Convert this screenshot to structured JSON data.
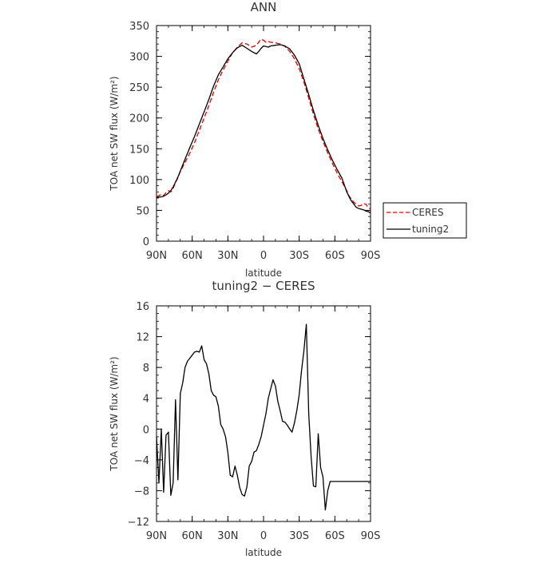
{
  "chart_data": [
    {
      "type": "line",
      "title": "ANN",
      "xlabel": "latitude",
      "ylabel": "TOA net SW flux (W/m²)",
      "xlim": [
        90,
        -90
      ],
      "ylim": [
        0,
        350
      ],
      "x_ticks": [
        {
          "value": 90,
          "label": "90N"
        },
        {
          "value": 60,
          "label": "60N"
        },
        {
          "value": 30,
          "label": "30N"
        },
        {
          "value": 0,
          "label": "0"
        },
        {
          "value": -30,
          "label": "30S"
        },
        {
          "value": -60,
          "label": "60S"
        },
        {
          "value": -90,
          "label": "90S"
        }
      ],
      "y_ticks": [
        0,
        50,
        100,
        150,
        200,
        250,
        300,
        350
      ],
      "legend_position": "outside-right",
      "series": [
        {
          "name": "CERES",
          "color": "#e00000",
          "dash": "dashed",
          "x": [
            90,
            86,
            84,
            82,
            80,
            78,
            76,
            74,
            72,
            70,
            66,
            62,
            58,
            54,
            50,
            46,
            42,
            38,
            34,
            30,
            26,
            22,
            18,
            14,
            10,
            6,
            4,
            2,
            0,
            -2,
            -4,
            -6,
            -10,
            -14,
            -18,
            -22,
            -26,
            -30,
            -34,
            -38,
            -42,
            -46,
            -50,
            -54,
            -58,
            -62,
            -66,
            -70,
            -72,
            -74,
            -76,
            -78,
            -80,
            -82,
            -84,
            -86,
            -88,
            -90
          ],
          "y": [
            72,
            76,
            74,
            79,
            82,
            80,
            86,
            95,
            103,
            113,
            128,
            143,
            160,
            180,
            200,
            220,
            242,
            262,
            278,
            292,
            306,
            315,
            322,
            320,
            315,
            318,
            323,
            328,
            326,
            323,
            324,
            323,
            322,
            320,
            316,
            308,
            296,
            280,
            258,
            232,
            206,
            182,
            162,
            143,
            126,
            110,
            96,
            82,
            73,
            68,
            63,
            60,
            57,
            58,
            61,
            60,
            55,
            52
          ]
        },
        {
          "name": "tuning2",
          "color": "#000000",
          "dash": "solid",
          "x": [
            90,
            86,
            84,
            82,
            80,
            78,
            76,
            74,
            72,
            70,
            66,
            62,
            58,
            54,
            50,
            46,
            42,
            38,
            34,
            30,
            26,
            22,
            18,
            14,
            10,
            6,
            4,
            2,
            0,
            -2,
            -4,
            -6,
            -10,
            -14,
            -18,
            -22,
            -26,
            -30,
            -34,
            -38,
            -42,
            -46,
            -50,
            -54,
            -58,
            -62,
            -66,
            -70,
            -72,
            -74,
            -76,
            -78,
            -80,
            -82,
            -84,
            -86,
            -88,
            -90
          ],
          "y": [
            71,
            72,
            73,
            75,
            78,
            82,
            88,
            96,
            104,
            114,
            133,
            152,
            170,
            190,
            210,
            230,
            252,
            270,
            283,
            296,
            306,
            314,
            318,
            313,
            308,
            304,
            308,
            313,
            317,
            316,
            315,
            317,
            318,
            319,
            317,
            312,
            302,
            288,
            263,
            238,
            212,
            188,
            167,
            148,
            131,
            116,
            102,
            80,
            72,
            65,
            60,
            55,
            53,
            52,
            51,
            49,
            48,
            46
          ]
        }
      ]
    },
    {
      "type": "line",
      "title": "tuning2 − CERES",
      "xlabel": "latitude",
      "ylabel": "TOA net SW flux (W/m²)",
      "xlim": [
        90,
        -90
      ],
      "ylim": [
        -12,
        16
      ],
      "x_ticks": [
        {
          "value": 90,
          "label": "90N"
        },
        {
          "value": 60,
          "label": "60N"
        },
        {
          "value": 30,
          "label": "30N"
        },
        {
          "value": 0,
          "label": "0"
        },
        {
          "value": -30,
          "label": "30S"
        },
        {
          "value": -60,
          "label": "60S"
        },
        {
          "value": -90,
          "label": "90S"
        }
      ],
      "y_ticks": [
        -12,
        -8,
        -4,
        0,
        4,
        8,
        12,
        16
      ],
      "series": [
        {
          "color": "#000000",
          "dash": "solid",
          "x": [
            90,
            88,
            86,
            84,
            82,
            80,
            78,
            76,
            74,
            72,
            70,
            68,
            66,
            64,
            62,
            60,
            58,
            56,
            54,
            52,
            50,
            48,
            46,
            44,
            42,
            40,
            38,
            36,
            34,
            32,
            30,
            28,
            26,
            24,
            22,
            20,
            18,
            16,
            14,
            12,
            10,
            8,
            6,
            4,
            2,
            0,
            -2,
            -4,
            -6,
            -8,
            -10,
            -12,
            -14,
            -16,
            -18,
            -20,
            -22,
            -24,
            -26,
            -28,
            -30,
            -32,
            -34,
            -36,
            -38,
            -40,
            -42,
            -44,
            -46,
            -48,
            -50,
            -52,
            -54,
            -56,
            -58,
            -60,
            -62,
            -64,
            -66,
            -68,
            -70,
            -72,
            -74,
            -76,
            -78,
            -80,
            -82,
            -84,
            -86,
            -88,
            -90
          ],
          "y": [
            -1,
            -7,
            0,
            -8.2,
            -0.8,
            -0.4,
            -8.6,
            -7,
            3.8,
            -6.6,
            4.6,
            6,
            8,
            8.8,
            9.2,
            9.6,
            10,
            10.1,
            10,
            10.8,
            9,
            8.5,
            7.2,
            5,
            4.4,
            4.2,
            3,
            0.6,
            0,
            -1,
            -3,
            -6,
            -6.2,
            -4.8,
            -6,
            -7.6,
            -8.5,
            -8.7,
            -7.5,
            -4.8,
            -4.2,
            -3,
            -2.8,
            -2,
            -1,
            0.5,
            2,
            4,
            5.2,
            6.4,
            5.6,
            3.6,
            2.4,
            1,
            0.9,
            0.5,
            0,
            -0.4,
            0.8,
            2.4,
            4.5,
            7.6,
            10.2,
            13.6,
            2,
            -3.6,
            -7.4,
            -7.5,
            -0.6,
            -5,
            -6.2,
            -10.5,
            -8,
            -6.8,
            -6.8,
            -6.8,
            -6.8,
            -6.8,
            -6.8,
            -6.8,
            -6.8,
            -6.8,
            -6.8,
            -6.8,
            -6.8,
            -6.8,
            -6.8,
            -6.8,
            -6.8,
            -6.8,
            -6.8
          ]
        }
      ]
    }
  ]
}
